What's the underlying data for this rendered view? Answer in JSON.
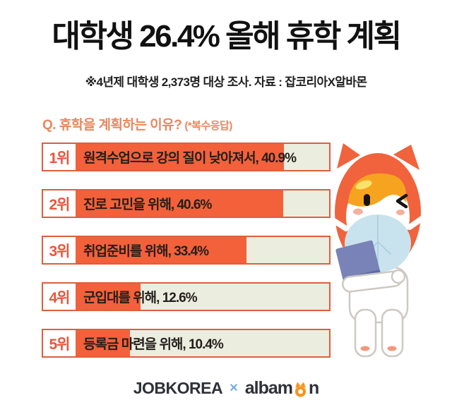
{
  "header": {
    "title": "대학생 26.4% 올해 휴학 계획",
    "subtitle": "※4년제 대학생 2,373명 대상 조사. 자료 : 잡코리아X알바몬"
  },
  "question": {
    "text": "Q. 휴학을 계획하는 이유?",
    "note": "(*복수응답)"
  },
  "chart_data": {
    "type": "bar",
    "title": "Q. 휴학을 계획하는 이유? (*복수응답)",
    "unit": "%",
    "categories": [
      "원격수업으로 강의 질이 낮아져서",
      "진로 고민을 위해",
      "취업준비를 위해",
      "군입대를 위해",
      "등록금 마련을 위해"
    ],
    "values": [
      40.9,
      40.6,
      33.4,
      12.6,
      10.4
    ],
    "items": [
      {
        "rank": "1위",
        "label": "원격수업으로 강의 질이 낮아져서, 40.9%",
        "value": 40.9,
        "fill_pct": 84.2
      },
      {
        "rank": "2위",
        "label": "진로 고민을 위해, 40.6%",
        "value": 40.6,
        "fill_pct": 84.0
      },
      {
        "rank": "3위",
        "label": "취업준비를 위해, 33.4%",
        "value": 33.4,
        "fill_pct": 71.1
      },
      {
        "rank": "4위",
        "label": "군입대를 위해, 12.6%",
        "value": 12.6,
        "fill_pct": 34.1
      },
      {
        "rank": "5위",
        "label": "등록금 마련을 위해, 10.4%",
        "value": 10.4,
        "fill_pct": 30.4
      }
    ]
  },
  "footer": {
    "brand_left": "JOBKOREA",
    "separator": "×",
    "brand_right_a": "albam",
    "brand_right_b": "n"
  },
  "colors": {
    "bar_fill": "#F2613A",
    "bar_border": "#DE5F3C",
    "bar_bg": "#EBEEDF",
    "rank_text": "#E8553B",
    "question_text": "#E8875F",
    "title_text": "#111111",
    "bar_text": "#241E1B",
    "brand_navy": "#2E3137",
    "brand_x_blue": "#74ACD8",
    "albamon_orange": "#F7941E",
    "mascot_hood": "#F0633C",
    "mascot_hair": "#F6A41F",
    "mascot_mask": "#C9E3EE",
    "mascot_book": "#7983B7"
  }
}
